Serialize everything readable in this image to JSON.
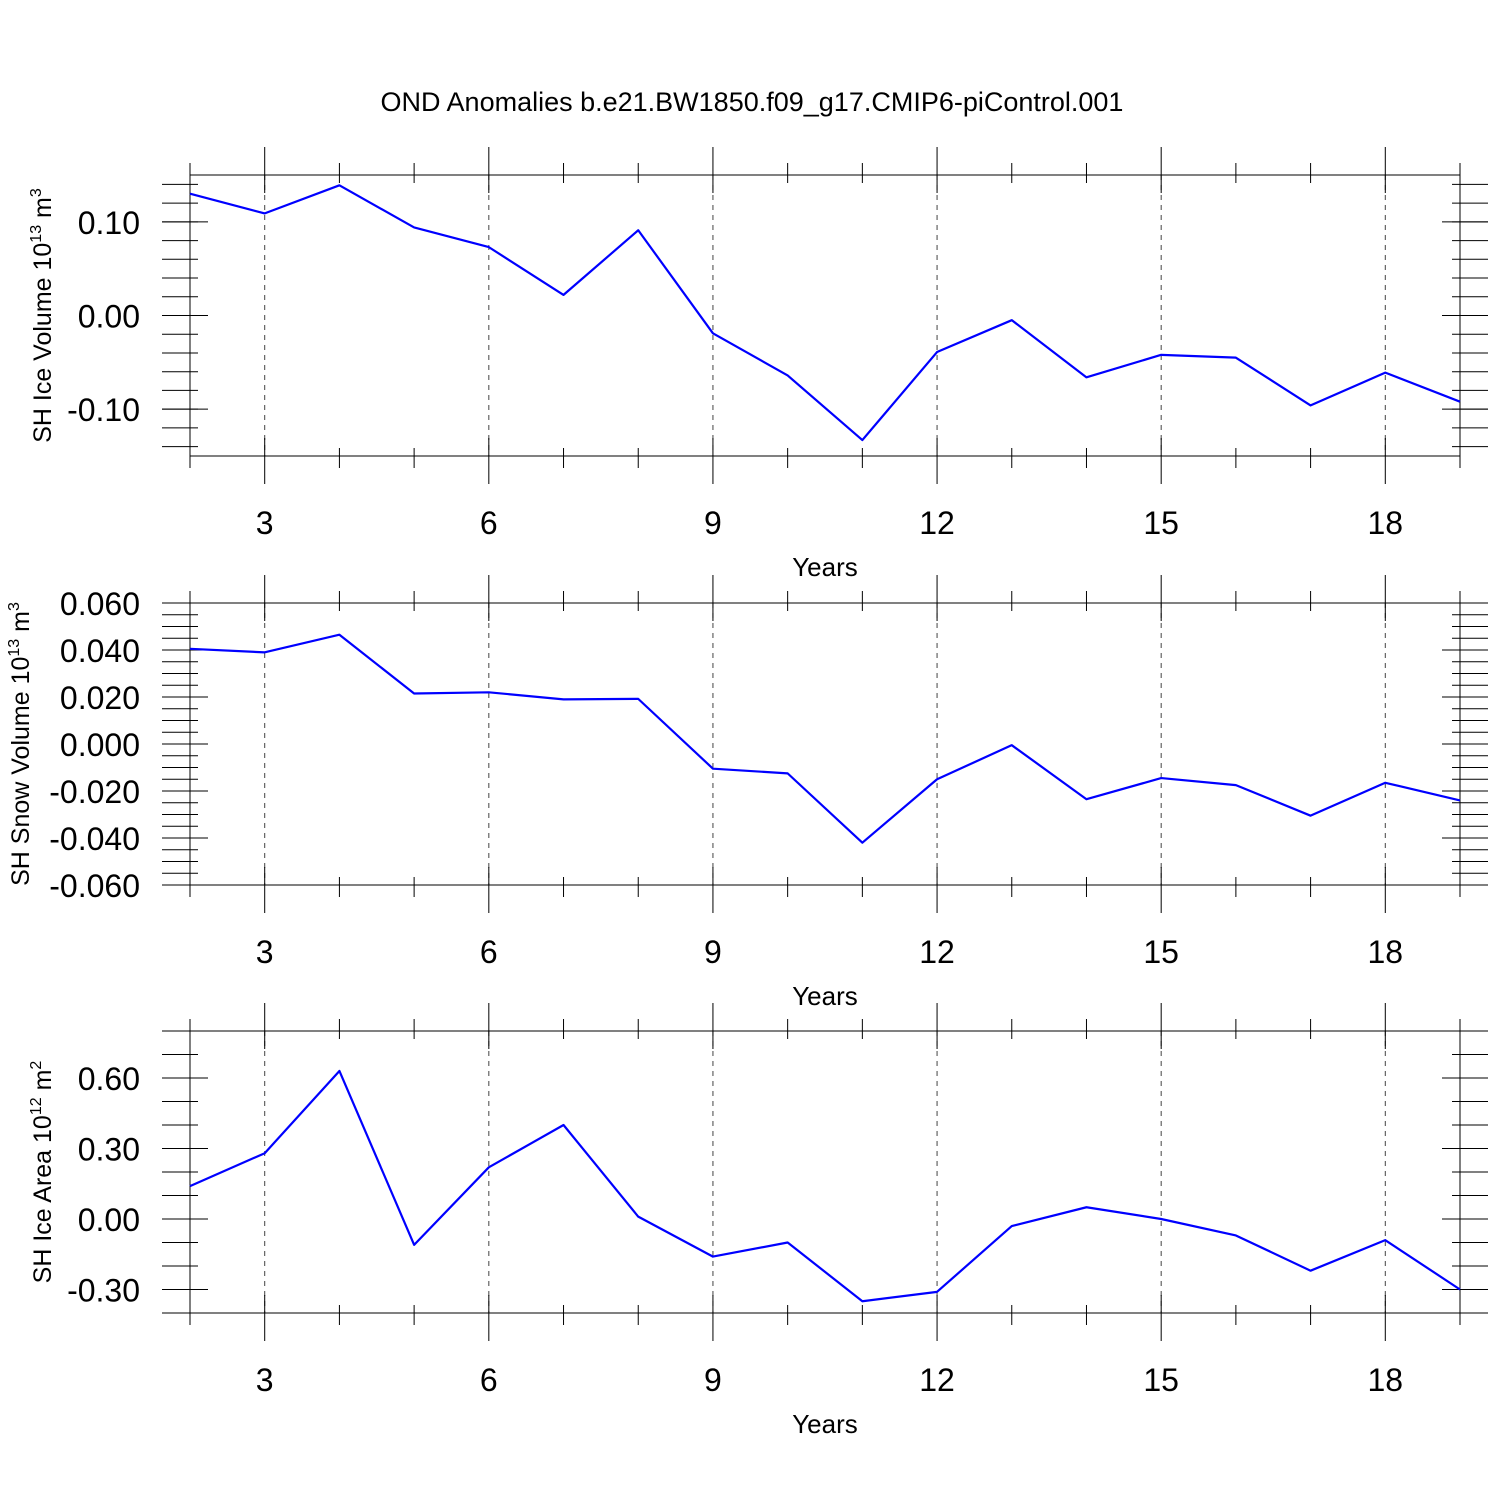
{
  "figure": {
    "title": "OND Anomalies b.e21.BW1850.f09_g17.CMIP6-piControl.001"
  },
  "chart_data": [
    {
      "type": "line",
      "ylabel": "SH Ice Volume 10",
      "ylabel_exp": "13",
      "ylabel_unit": " m",
      "ylabel_unit_exp": "3",
      "xlabel": "Years",
      "xlim": [
        2,
        19
      ],
      "ylim": [
        -0.15,
        0.15
      ],
      "xticks": [
        3,
        6,
        9,
        12,
        15,
        18
      ],
      "xtick_labels": [
        "3",
        "6",
        "9",
        "12",
        "15",
        "18"
      ],
      "xminor": [
        2,
        4,
        5,
        7,
        8,
        10,
        11,
        13,
        14,
        16,
        17,
        19
      ],
      "yticks": [
        -0.1,
        0.0,
        0.1
      ],
      "ytick_labels": [
        "-0.10",
        "0.00",
        "0.10"
      ],
      "yminor_step": 0.02,
      "grid": "dashed vertical at major x ticks",
      "color": "#0000ff",
      "x": [
        2,
        3,
        4,
        5,
        6,
        7,
        8,
        9,
        10,
        11,
        12,
        13,
        14,
        15,
        16,
        17,
        18,
        19
      ],
      "values": [
        0.13,
        0.109,
        0.139,
        0.094,
        0.073,
        0.022,
        0.091,
        -0.019,
        -0.064,
        -0.133,
        -0.039,
        -0.005,
        -0.066,
        -0.042,
        -0.045,
        -0.096,
        -0.061,
        -0.092
      ]
    },
    {
      "type": "line",
      "ylabel": "SH Snow Volume 10",
      "ylabel_exp": "13",
      "ylabel_unit": " m",
      "ylabel_unit_exp": "3",
      "xlabel": "Years",
      "xlim": [
        2,
        19
      ],
      "ylim": [
        -0.06,
        0.06
      ],
      "xticks": [
        3,
        6,
        9,
        12,
        15,
        18
      ],
      "xtick_labels": [
        "3",
        "6",
        "9",
        "12",
        "15",
        "18"
      ],
      "xminor": [
        2,
        4,
        5,
        7,
        8,
        10,
        11,
        13,
        14,
        16,
        17,
        19
      ],
      "yticks": [
        -0.06,
        -0.04,
        -0.02,
        0.0,
        0.02,
        0.04,
        0.06
      ],
      "ytick_labels": [
        "-0.060",
        "-0.040",
        "-0.020",
        "0.000",
        "0.020",
        "0.040",
        "0.060"
      ],
      "yminor_step": 0.005,
      "grid": "dashed vertical at major x ticks",
      "color": "#0000ff",
      "x": [
        2,
        3,
        4,
        5,
        6,
        7,
        8,
        9,
        10,
        11,
        12,
        13,
        14,
        15,
        16,
        17,
        18,
        19
      ],
      "values": [
        0.0405,
        0.039,
        0.0465,
        0.0215,
        0.022,
        0.019,
        0.0192,
        -0.0105,
        -0.0125,
        -0.042,
        -0.015,
        -0.0005,
        -0.0235,
        -0.0145,
        -0.0175,
        -0.0305,
        -0.0165,
        -0.024
      ]
    },
    {
      "type": "line",
      "ylabel": "SH Ice Area 10",
      "ylabel_exp": "12",
      "ylabel_unit": " m",
      "ylabel_unit_exp": "2",
      "xlabel": "Years",
      "xlim": [
        2,
        19
      ],
      "ylim": [
        -0.4,
        0.8
      ],
      "xticks": [
        3,
        6,
        9,
        12,
        15,
        18
      ],
      "xtick_labels": [
        "3",
        "6",
        "9",
        "12",
        "15",
        "18"
      ],
      "xminor": [
        2,
        4,
        5,
        7,
        8,
        10,
        11,
        13,
        14,
        16,
        17,
        19
      ],
      "yticks": [
        -0.3,
        0.0,
        0.3,
        0.6
      ],
      "ytick_labels": [
        "-0.30",
        "0.00",
        "0.30",
        "0.60"
      ],
      "yminor_step": 0.1,
      "grid": "dashed vertical at major x ticks",
      "color": "#0000ff",
      "x": [
        2,
        3,
        4,
        5,
        6,
        7,
        8,
        9,
        10,
        11,
        12,
        13,
        14,
        15,
        16,
        17,
        18,
        19
      ],
      "values": [
        0.14,
        0.28,
        0.63,
        -0.11,
        0.22,
        0.4,
        0.01,
        -0.16,
        -0.1,
        -0.35,
        -0.31,
        -0.03,
        0.05,
        0.0,
        -0.07,
        -0.22,
        -0.09,
        -0.3
      ]
    }
  ]
}
